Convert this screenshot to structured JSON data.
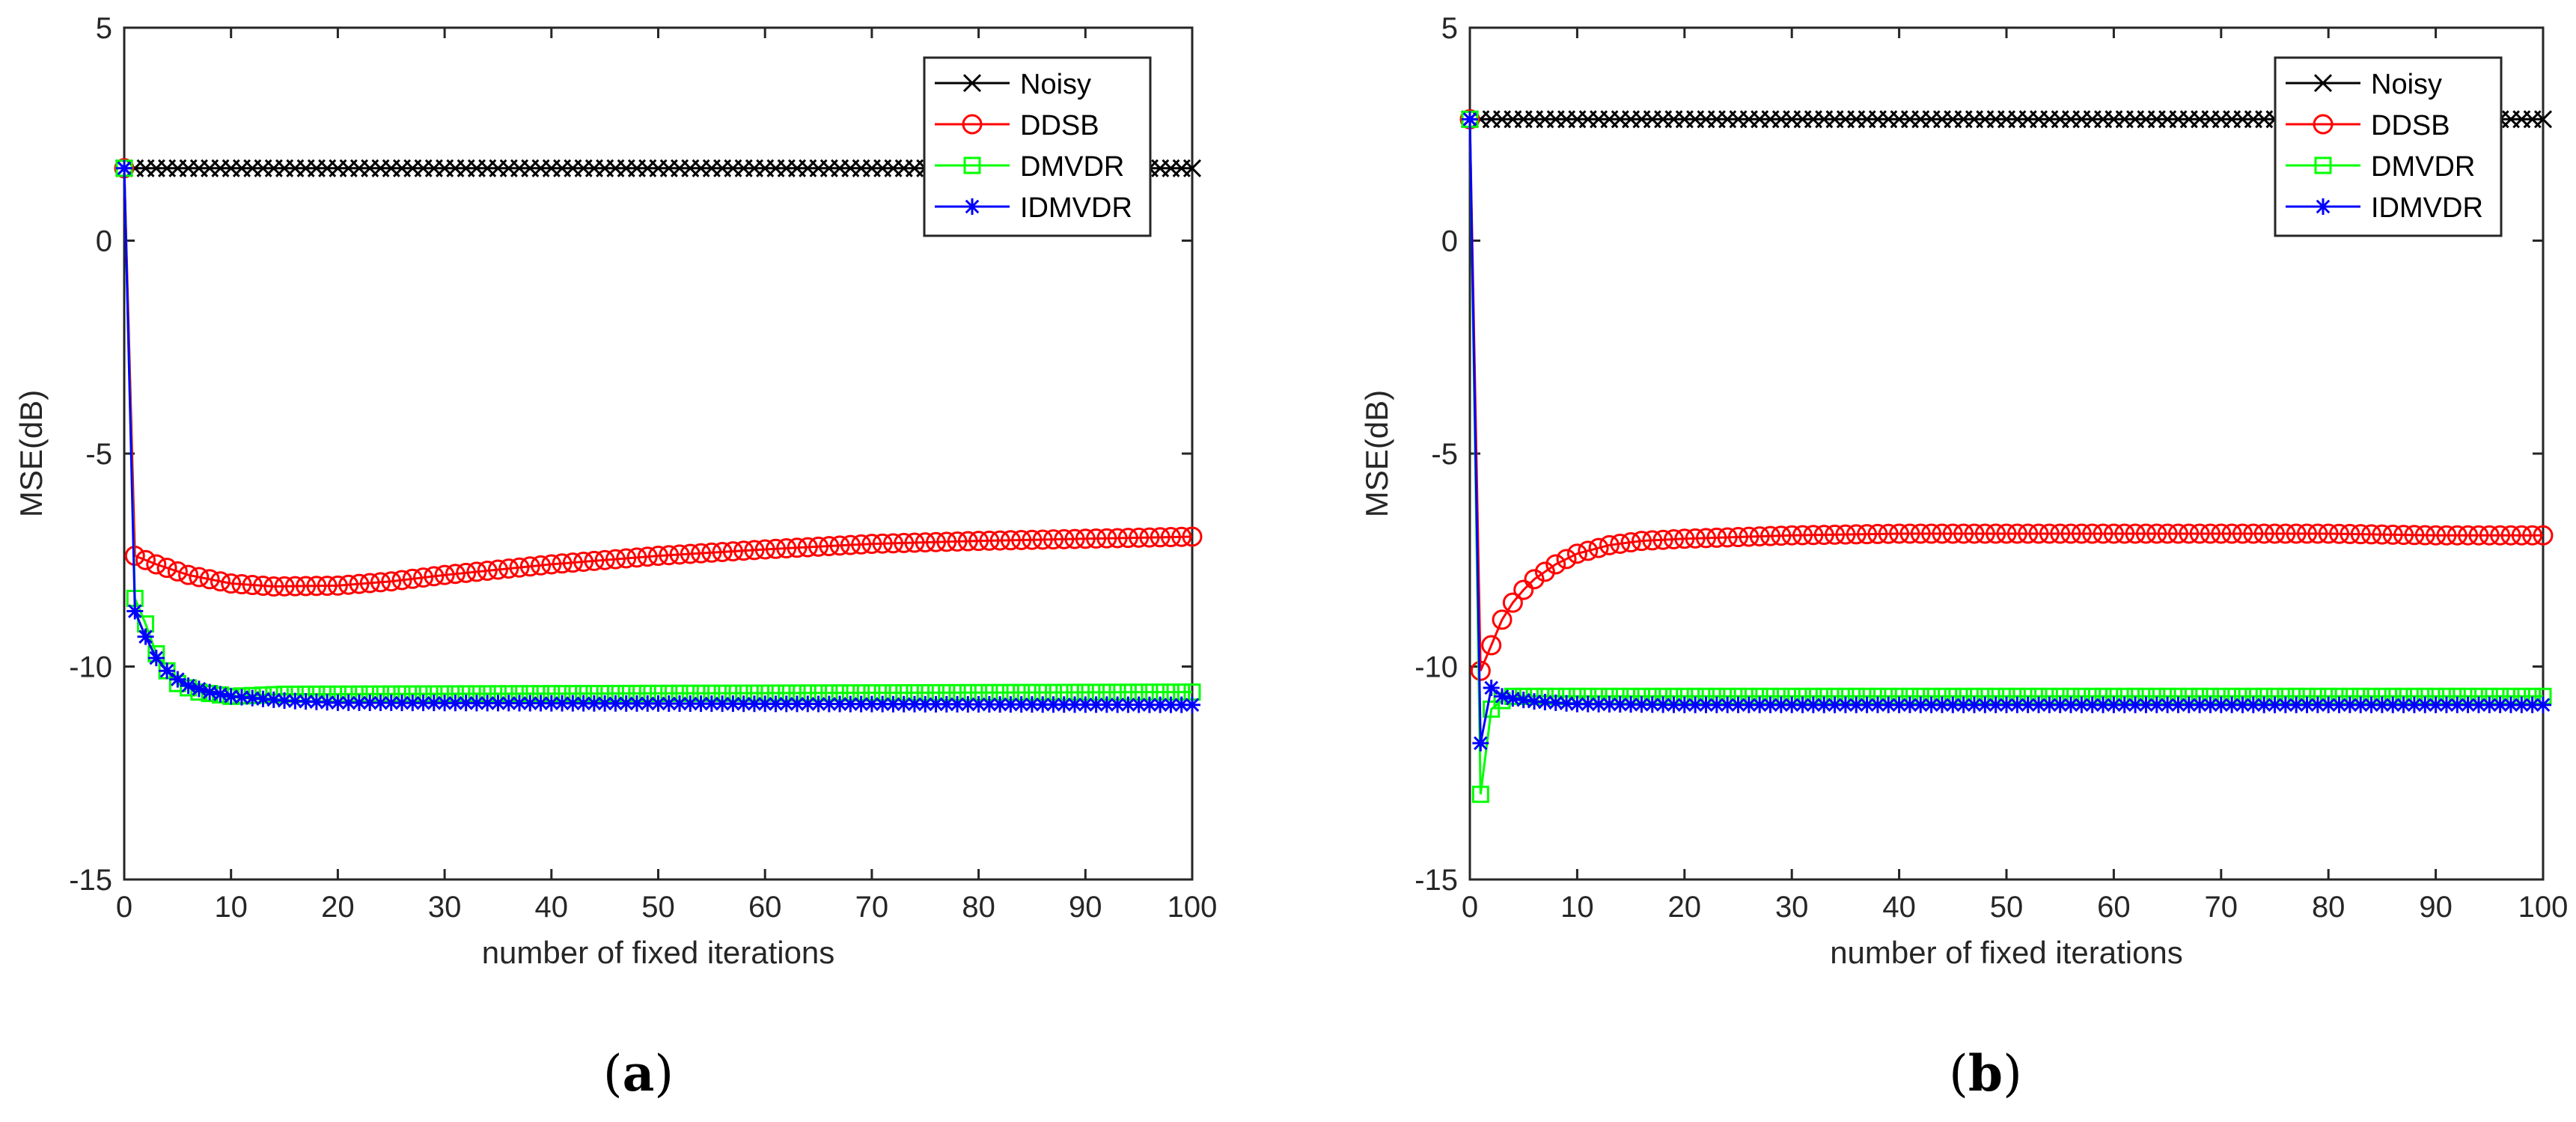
{
  "figure": {
    "panels": [
      {
        "caption_open": "(",
        "caption_letter": "a",
        "caption_close": ")"
      },
      {
        "caption_open": "(",
        "caption_letter": "b",
        "caption_close": ")"
      }
    ]
  },
  "chart_data": [
    {
      "type": "line",
      "panel": "a",
      "title": "",
      "xlabel": "number of fixed iterations",
      "ylabel": "MSE(dB)",
      "xlim": [
        0,
        100
      ],
      "ylim": [
        -15,
        5
      ],
      "xticks": [
        0,
        10,
        20,
        30,
        40,
        50,
        60,
        70,
        80,
        90,
        100
      ],
      "yticks": [
        -15,
        -10,
        -5,
        0,
        5
      ],
      "legend_position": "top-right",
      "series": [
        {
          "name": "Noisy",
          "color": "#000000",
          "marker": "x",
          "points": [
            [
              0,
              1.7
            ],
            [
              100,
              1.7
            ]
          ]
        },
        {
          "name": "DDSB",
          "color": "#ff0000",
          "marker": "o",
          "points": [
            [
              0,
              1.7
            ],
            [
              1,
              -7.4
            ],
            [
              3,
              -7.6
            ],
            [
              6,
              -7.85
            ],
            [
              10,
              -8.05
            ],
            [
              14,
              -8.12
            ],
            [
              20,
              -8.1
            ],
            [
              25,
              -8.0
            ],
            [
              30,
              -7.85
            ],
            [
              40,
              -7.6
            ],
            [
              50,
              -7.4
            ],
            [
              60,
              -7.25
            ],
            [
              70,
              -7.12
            ],
            [
              80,
              -7.05
            ],
            [
              90,
              -7.0
            ],
            [
              100,
              -6.95
            ]
          ]
        },
        {
          "name": "DMVDR",
          "color": "#00ff00",
          "marker": "square",
          "points": [
            [
              0,
              1.7
            ],
            [
              1,
              -8.4
            ],
            [
              2,
              -9.0
            ],
            [
              3,
              -9.7
            ],
            [
              4,
              -10.1
            ],
            [
              5,
              -10.4
            ],
            [
              7,
              -10.6
            ],
            [
              10,
              -10.7
            ],
            [
              15,
              -10.65
            ],
            [
              100,
              -10.6
            ]
          ]
        },
        {
          "name": "IDMVDR",
          "color": "#0000ff",
          "marker": "asterisk",
          "points": [
            [
              0,
              1.7
            ],
            [
              1,
              -8.7
            ],
            [
              2,
              -9.3
            ],
            [
              3,
              -9.8
            ],
            [
              4,
              -10.1
            ],
            [
              5,
              -10.3
            ],
            [
              6,
              -10.45
            ],
            [
              8,
              -10.6
            ],
            [
              10,
              -10.7
            ],
            [
              15,
              -10.8
            ],
            [
              20,
              -10.85
            ],
            [
              100,
              -10.9
            ]
          ]
        }
      ]
    },
    {
      "type": "line",
      "panel": "b",
      "title": "",
      "xlabel": "number of fixed iterations",
      "ylabel": "MSE(dB)",
      "xlim": [
        0,
        100
      ],
      "ylim": [
        -15,
        5
      ],
      "xticks": [
        0,
        10,
        20,
        30,
        40,
        50,
        60,
        70,
        80,
        90,
        100
      ],
      "yticks": [
        -15,
        -10,
        -5,
        0,
        5
      ],
      "legend_position": "top-right",
      "series": [
        {
          "name": "Noisy",
          "color": "#000000",
          "marker": "x",
          "points": [
            [
              0,
              2.85
            ],
            [
              100,
              2.85
            ]
          ]
        },
        {
          "name": "DDSB",
          "color": "#ff0000",
          "marker": "o",
          "points": [
            [
              0,
              2.85
            ],
            [
              1,
              -10.1
            ],
            [
              2,
              -9.5
            ],
            [
              3,
              -8.9
            ],
            [
              4,
              -8.5
            ],
            [
              5,
              -8.2
            ],
            [
              6,
              -7.95
            ],
            [
              8,
              -7.6
            ],
            [
              10,
              -7.35
            ],
            [
              13,
              -7.15
            ],
            [
              16,
              -7.05
            ],
            [
              20,
              -7.0
            ],
            [
              30,
              -6.92
            ],
            [
              40,
              -6.88
            ],
            [
              60,
              -6.88
            ],
            [
              80,
              -6.88
            ],
            [
              90,
              -6.92
            ],
            [
              100,
              -6.92
            ]
          ]
        },
        {
          "name": "DMVDR",
          "color": "#00ff00",
          "marker": "square",
          "points": [
            [
              0,
              2.85
            ],
            [
              1,
              -13.0
            ],
            [
              2,
              -11.0
            ],
            [
              3,
              -10.8
            ],
            [
              4,
              -10.7
            ],
            [
              5,
              -10.7
            ],
            [
              100,
              -10.7
            ]
          ]
        },
        {
          "name": "IDMVDR",
          "color": "#0000ff",
          "marker": "asterisk",
          "points": [
            [
              0,
              2.85
            ],
            [
              1,
              -11.8
            ],
            [
              2,
              -10.5
            ],
            [
              3,
              -10.7
            ],
            [
              4,
              -10.75
            ],
            [
              6,
              -10.82
            ],
            [
              10,
              -10.88
            ],
            [
              20,
              -10.9
            ],
            [
              100,
              -10.9
            ]
          ]
        }
      ]
    }
  ]
}
